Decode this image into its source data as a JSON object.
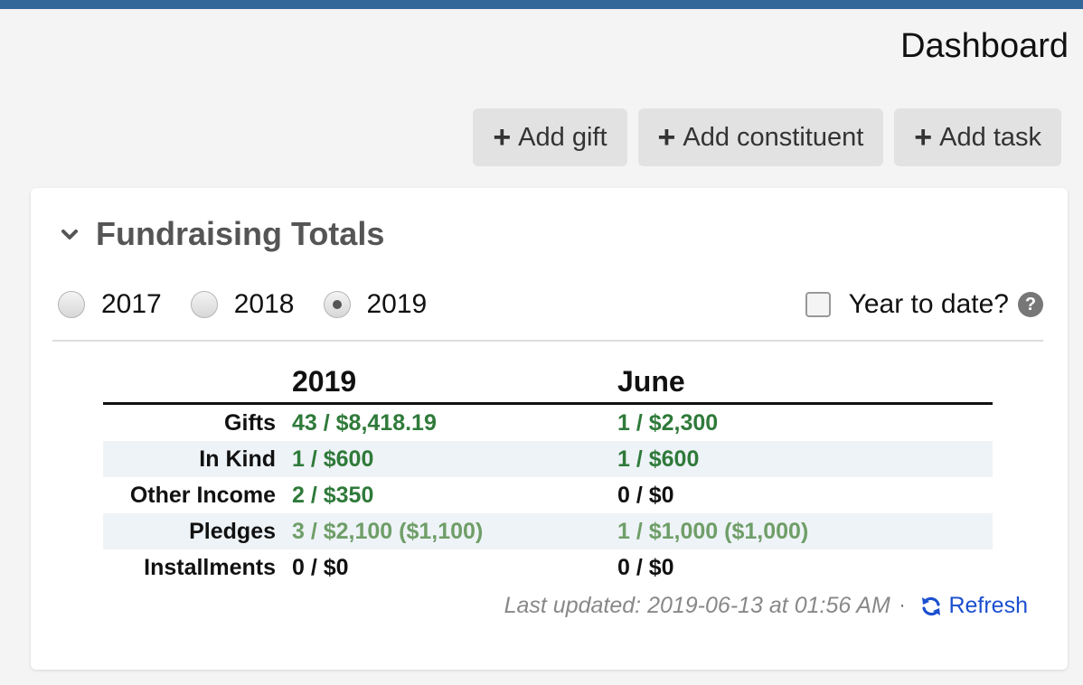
{
  "header": {
    "page_title": "Dashboard"
  },
  "actions": [
    {
      "label": "Add gift",
      "icon": "plus-icon"
    },
    {
      "label": "Add constituent",
      "icon": "plus-icon"
    },
    {
      "label": "Add task",
      "icon": "plus-icon"
    }
  ],
  "panel": {
    "title": "Fundraising Totals",
    "collapse_icon": "chevron-down-icon",
    "years": [
      {
        "label": "2017",
        "selected": false
      },
      {
        "label": "2018",
        "selected": false
      },
      {
        "label": "2019",
        "selected": true
      }
    ],
    "ytd_label": "Year to date?",
    "ytd_checked": false,
    "help_icon": "?",
    "table": {
      "columns": [
        "2019",
        "June"
      ],
      "rows": [
        {
          "label": "Gifts",
          "year": "43 / $8,418.19",
          "month": "1 / $2,300"
        },
        {
          "label": "In Kind",
          "year": "1 / $600",
          "month": "1 / $600"
        },
        {
          "label": "Other Income",
          "year": "2 / $350",
          "month": "0 / $0"
        },
        {
          "label": "Pledges",
          "year": "3 / $2,100 ($1,100)",
          "month": "1 / $1,000 ($1,000)"
        },
        {
          "label": "Installments",
          "year": "0 / $0",
          "month": "0 / $0"
        }
      ]
    },
    "last_updated": "Last updated: 2019-06-13 at 01:56 AM",
    "separator": "·",
    "refresh_label": "Refresh"
  },
  "colors": {
    "topbar": "#336699",
    "value_green": "#2f7a3a",
    "pledge_green": "#6f9e68",
    "link_blue": "#1a4fd0",
    "stripe": "#eef3f7"
  }
}
